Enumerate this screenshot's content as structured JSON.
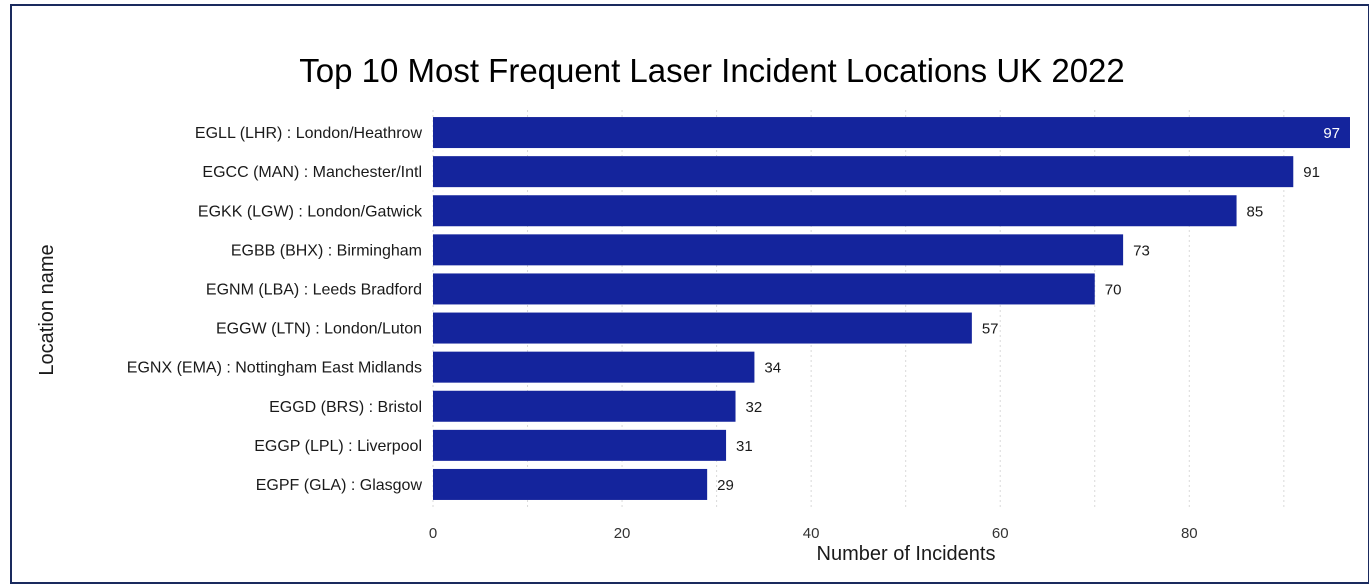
{
  "chart_data": {
    "type": "bar",
    "orientation": "horizontal",
    "title": "Top 10 Most Frequent Laser Incident Locations UK 2022",
    "xlabel": "Number of Incidents",
    "ylabel": "Location name",
    "categories": [
      "EGLL (LHR) : London/Heathrow",
      "EGCC (MAN) : Manchester/Intl",
      "EGKK (LGW) : London/Gatwick",
      "EGBB (BHX) : Birmingham",
      "EGNM (LBA) : Leeds Bradford",
      "EGGW (LTN) : London/Luton",
      "EGNX (EMA) : Nottingham East Midlands",
      "EGGD (BRS) : Bristol",
      "EGGP (LPL) : Liverpool",
      "EGPF (GLA) : Glasgow"
    ],
    "values": [
      97,
      91,
      85,
      73,
      70,
      57,
      34,
      32,
      31,
      29
    ],
    "xlim": [
      0,
      97
    ],
    "xticks": [
      0,
      20,
      40,
      60,
      80
    ],
    "grid": true,
    "legend": "none",
    "bar_color": "#14249c"
  }
}
